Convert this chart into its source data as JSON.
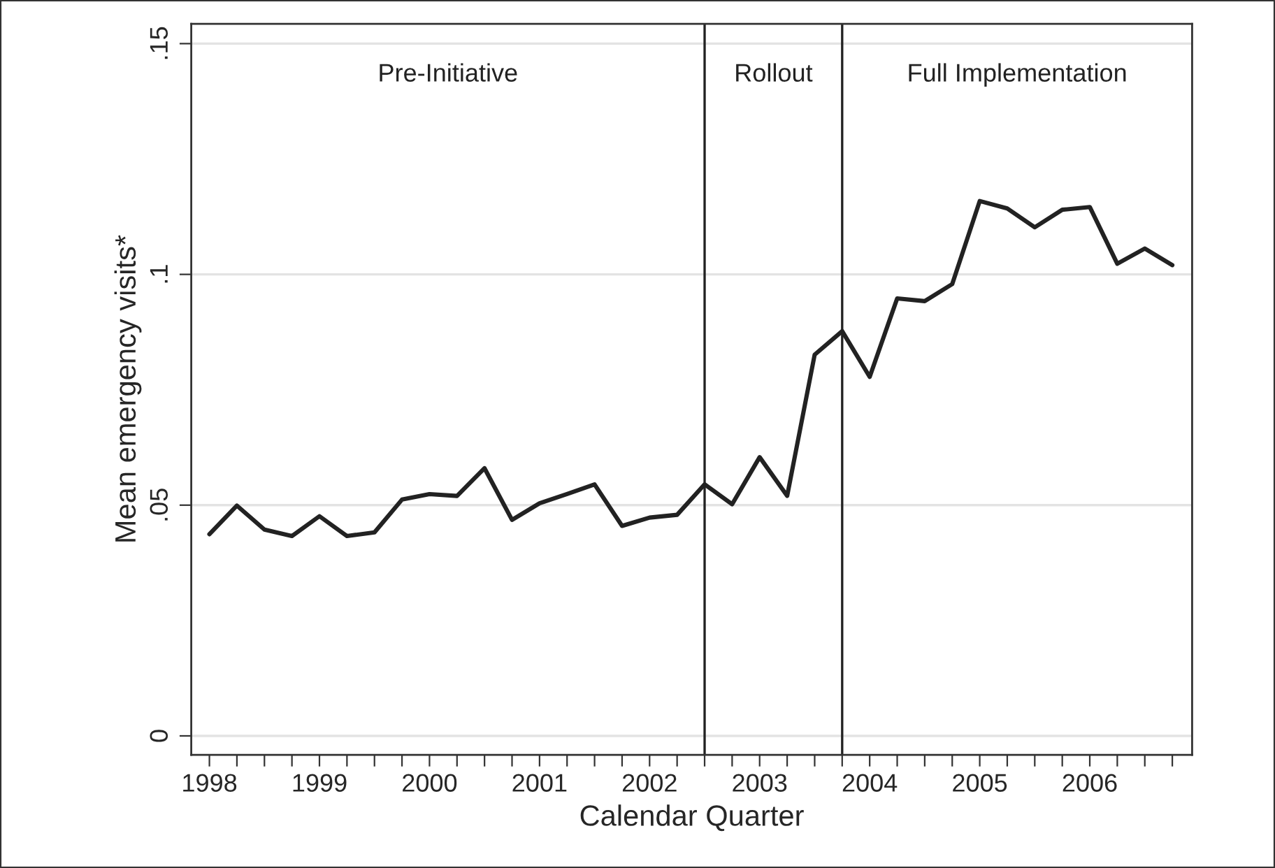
{
  "chart_data": {
    "type": "line",
    "xlabel": "Calendar Quarter",
    "ylabel": "Mean emergency visits*",
    "x": [
      1998,
      1998.25,
      1998.5,
      1998.75,
      1999,
      1999.25,
      1999.5,
      1999.75,
      2000,
      2000.25,
      2000.5,
      2000.75,
      2001,
      2001.25,
      2001.5,
      2001.75,
      2002,
      2002.25,
      2002.5,
      2002.75,
      2003,
      2003.25,
      2003.5,
      2003.75,
      2004,
      2004.25,
      2004.5,
      2004.75,
      2005,
      2005.25,
      2005.5,
      2005.75,
      2006,
      2006.25,
      2006.5,
      2006.75
    ],
    "series": [
      {
        "color": "#222222",
        "values": [
          0.0437,
          0.0499,
          0.0447,
          0.0433,
          0.0476,
          0.0433,
          0.0441,
          0.0512,
          0.0524,
          0.052,
          0.058,
          0.0468,
          0.0504,
          0.0524,
          0.0545,
          0.0455,
          0.0473,
          0.0479,
          0.0545,
          0.0502,
          0.0604,
          0.052,
          0.0826,
          0.0877,
          0.0778,
          0.0948,
          0.0942,
          0.0979,
          0.1159,
          0.1143,
          0.1102,
          0.114,
          0.1146,
          0.1023,
          0.1056,
          0.102
        ]
      }
    ],
    "xlim": [
      1997.835,
      2006.93
    ],
    "ylim": [
      -0.0041,
      0.1543
    ],
    "xticks": [
      1998,
      {
        "value": 1998.25,
        "label": null
      },
      {
        "value": 1998.5,
        "label": null
      },
      {
        "value": 1998.75,
        "label": null
      },
      1999,
      {
        "value": 1999.25,
        "label": null
      },
      {
        "value": 1999.5,
        "label": null
      },
      {
        "value": 1999.75,
        "label": null
      },
      2000,
      {
        "value": 2000.25,
        "label": null
      },
      {
        "value": 2000.5,
        "label": null
      },
      {
        "value": 2000.75,
        "label": null
      },
      2001,
      {
        "value": 2001.25,
        "label": null
      },
      {
        "value": 2001.5,
        "label": null
      },
      {
        "value": 2001.75,
        "label": null
      },
      2002,
      {
        "value": 2002.25,
        "label": null
      },
      {
        "value": 2002.5,
        "label": null
      },
      {
        "value": 2002.75,
        "label": null
      },
      2003,
      {
        "value": 2003.25,
        "label": null
      },
      {
        "value": 2003.5,
        "label": null
      },
      {
        "value": 2003.75,
        "label": null
      },
      2004,
      {
        "value": 2004.25,
        "label": null
      },
      {
        "value": 2004.5,
        "label": null
      },
      {
        "value": 2004.75,
        "label": null
      },
      2005,
      {
        "value": 2005.25,
        "label": null
      },
      {
        "value": 2005.5,
        "label": null
      },
      {
        "value": 2005.75,
        "label": null
      },
      2006,
      {
        "value": 2006.25,
        "label": null
      },
      {
        "value": 2006.5,
        "label": null
      },
      {
        "value": 2006.75,
        "label": null
      }
    ],
    "yticks": [
      0,
      {
        "value": 0.05,
        "label": ".05"
      },
      {
        "value": 0.1,
        "label": ".1"
      },
      {
        "value": 0.15,
        "label": ".15"
      }
    ],
    "grid": "y",
    "legend": false,
    "marker": "none",
    "line_style": "solid",
    "ref_lines": [
      {
        "axis": "x",
        "value": 2002.5,
        "color": "#222222"
      },
      {
        "axis": "x",
        "value": 2003.75,
        "color": "#222222"
      }
    ],
    "annotations": [
      "Pre-Initiative",
      "Rollout",
      "Full Implementation"
    ]
  }
}
